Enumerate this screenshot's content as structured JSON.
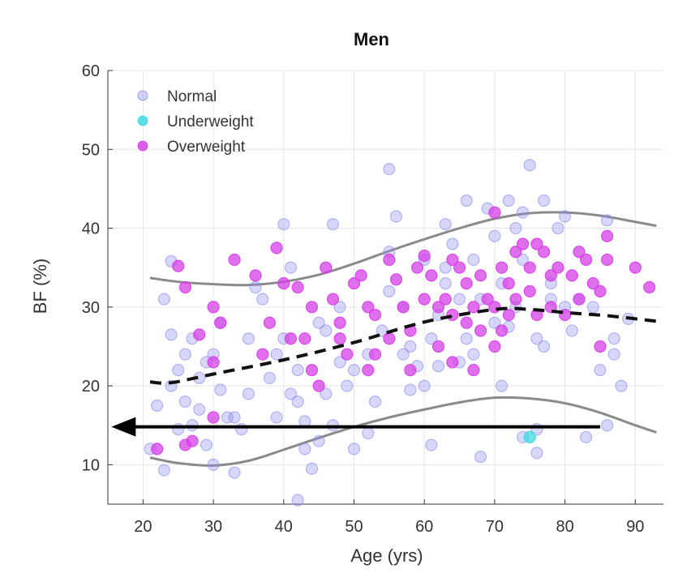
{
  "chart_data": {
    "type": "scatter",
    "title": "Men",
    "xlabel": "Age (yrs)",
    "ylabel": "BF (%)",
    "xlim": [
      15,
      94
    ],
    "ylim": [
      5,
      60
    ],
    "xticks": [
      20,
      30,
      40,
      50,
      60,
      70,
      80,
      90
    ],
    "yticks": [
      10,
      20,
      30,
      40,
      50,
      60
    ],
    "grid": true,
    "legend_position": "top-left",
    "series": [
      {
        "name": "Normal",
        "color": "#8c8cf0",
        "points": [
          [
            23,
            31
          ],
          [
            24,
            35.8
          ],
          [
            22,
            17.5
          ],
          [
            25,
            22
          ],
          [
            24,
            26.5
          ],
          [
            26,
            24
          ],
          [
            27,
            26
          ],
          [
            26,
            18
          ],
          [
            28,
            17
          ],
          [
            25,
            14.5
          ],
          [
            23,
            9.3
          ],
          [
            21,
            12
          ],
          [
            24,
            20
          ],
          [
            27,
            15
          ],
          [
            29,
            12.5
          ],
          [
            30,
            24
          ],
          [
            31,
            19.5
          ],
          [
            32,
            16
          ],
          [
            33,
            9
          ],
          [
            29,
            23
          ],
          [
            30,
            10
          ],
          [
            33,
            16
          ],
          [
            35,
            26
          ],
          [
            34,
            14.5
          ],
          [
            36,
            32.5
          ],
          [
            37,
            31
          ],
          [
            38,
            21
          ],
          [
            39,
            16
          ],
          [
            40,
            40.5
          ],
          [
            41,
            35
          ],
          [
            40,
            26
          ],
          [
            39,
            24
          ],
          [
            42,
            22
          ],
          [
            41,
            19
          ],
          [
            42,
            18
          ],
          [
            43,
            12
          ],
          [
            44,
            9.5
          ],
          [
            42,
            5.5
          ],
          [
            43,
            15.5
          ],
          [
            45,
            13
          ],
          [
            46,
            19
          ],
          [
            47,
            40.5
          ],
          [
            48,
            30
          ],
          [
            48,
            23
          ],
          [
            49,
            20
          ],
          [
            47,
            15
          ],
          [
            50,
            12
          ],
          [
            52,
            14
          ],
          [
            53,
            18
          ],
          [
            54,
            27
          ],
          [
            55,
            32
          ],
          [
            55,
            47.5
          ],
          [
            56,
            41.5
          ],
          [
            55,
            37
          ],
          [
            57,
            30
          ],
          [
            58,
            25
          ],
          [
            59,
            22.5
          ],
          [
            60,
            36
          ],
          [
            61,
            26
          ],
          [
            61,
            12.5
          ],
          [
            62,
            29
          ],
          [
            63,
            33
          ],
          [
            63,
            40.5
          ],
          [
            64,
            38
          ],
          [
            65,
            23
          ],
          [
            66,
            26
          ],
          [
            66,
            43.5
          ],
          [
            67,
            36
          ],
          [
            68,
            11
          ],
          [
            68,
            31
          ],
          [
            69,
            42.5
          ],
          [
            70,
            39
          ],
          [
            70,
            28
          ],
          [
            71,
            20
          ],
          [
            72,
            43.5
          ],
          [
            73,
            30
          ],
          [
            73,
            40
          ],
          [
            74,
            42
          ],
          [
            75,
            48
          ],
          [
            76,
            26
          ],
          [
            77,
            43.5
          ],
          [
            74,
            13.5
          ],
          [
            76,
            14.5
          ],
          [
            76,
            11.5
          ],
          [
            77,
            25
          ],
          [
            78,
            33
          ],
          [
            79,
            40
          ],
          [
            80,
            41.5
          ],
          [
            80,
            30
          ],
          [
            81,
            27
          ],
          [
            82,
            31
          ],
          [
            83,
            13.5
          ],
          [
            84,
            30
          ],
          [
            85,
            22
          ],
          [
            86,
            41
          ],
          [
            86,
            15
          ],
          [
            87,
            24
          ],
          [
            88,
            20
          ],
          [
            87,
            26
          ],
          [
            89,
            28.5
          ],
          [
            58,
            19.5
          ],
          [
            52,
            24
          ],
          [
            45,
            28
          ],
          [
            35,
            19
          ],
          [
            28,
            21
          ],
          [
            31,
            28
          ],
          [
            60,
            20
          ],
          [
            63,
            35
          ],
          [
            67,
            24
          ],
          [
            71,
            33
          ],
          [
            65,
            31
          ],
          [
            57,
            24
          ],
          [
            50,
            22
          ],
          [
            46,
            27
          ],
          [
            62,
            22.5
          ],
          [
            72,
            27.5
          ],
          [
            74,
            36
          ],
          [
            78,
            31
          ]
        ]
      },
      {
        "name": "Underweight",
        "color": "#3fd9e0",
        "points": [
          [
            75,
            13.5
          ]
        ]
      },
      {
        "name": "Overweight",
        "color": "#d63fe8",
        "points": [
          [
            22,
            12
          ],
          [
            25,
            35.2
          ],
          [
            26,
            32.5
          ],
          [
            28,
            26.5
          ],
          [
            30,
            30
          ],
          [
            31,
            28
          ],
          [
            30,
            23
          ],
          [
            27,
            13
          ],
          [
            30,
            16
          ],
          [
            33,
            36
          ],
          [
            38,
            28
          ],
          [
            37,
            24
          ],
          [
            39,
            37.5
          ],
          [
            40,
            33
          ],
          [
            42,
            32.5
          ],
          [
            44,
            30
          ],
          [
            41,
            26
          ],
          [
            44,
            22
          ],
          [
            45,
            20
          ],
          [
            46,
            35
          ],
          [
            47,
            31
          ],
          [
            48,
            26
          ],
          [
            49,
            24
          ],
          [
            50,
            33
          ],
          [
            51,
            34
          ],
          [
            52,
            30
          ],
          [
            53,
            29
          ],
          [
            52,
            22
          ],
          [
            53,
            24
          ],
          [
            55,
            36
          ],
          [
            56,
            33.5
          ],
          [
            57,
            30
          ],
          [
            58,
            27
          ],
          [
            58,
            22
          ],
          [
            59,
            35
          ],
          [
            60,
            36.5
          ],
          [
            61,
            34
          ],
          [
            62,
            30
          ],
          [
            62,
            25
          ],
          [
            63,
            31
          ],
          [
            64,
            29
          ],
          [
            64,
            23
          ],
          [
            65,
            35
          ],
          [
            66,
            33
          ],
          [
            66,
            28
          ],
          [
            67,
            30
          ],
          [
            67,
            22
          ],
          [
            68,
            27
          ],
          [
            68,
            34
          ],
          [
            69,
            31
          ],
          [
            70,
            30
          ],
          [
            70,
            25
          ],
          [
            71,
            35
          ],
          [
            72,
            33
          ],
          [
            72,
            29
          ],
          [
            73,
            37
          ],
          [
            73,
            31
          ],
          [
            74,
            38
          ],
          [
            75,
            35
          ],
          [
            75,
            32
          ],
          [
            76,
            29
          ],
          [
            77,
            37
          ],
          [
            78,
            34
          ],
          [
            78,
            30
          ],
          [
            79,
            35
          ],
          [
            80,
            29
          ],
          [
            81,
            34
          ],
          [
            82,
            37
          ],
          [
            82,
            31
          ],
          [
            83,
            36
          ],
          [
            84,
            33
          ],
          [
            85,
            32
          ],
          [
            86,
            36
          ],
          [
            86,
            39
          ],
          [
            85,
            25
          ],
          [
            90,
            35
          ],
          [
            92,
            32.5
          ],
          [
            70,
            42
          ],
          [
            64,
            36
          ],
          [
            36,
            34
          ],
          [
            43,
            26
          ],
          [
            48,
            28
          ],
          [
            55,
            26
          ],
          [
            60,
            31
          ],
          [
            76,
            38
          ],
          [
            71,
            27
          ],
          [
            26,
            12.5
          ]
        ]
      }
    ],
    "lines": [
      {
        "name": "mean-trend",
        "style": "dashed",
        "color": "#111111",
        "points": [
          [
            21,
            20.5
          ],
          [
            24,
            20.4
          ],
          [
            30,
            21.5
          ],
          [
            40,
            23.3
          ],
          [
            50,
            25.5
          ],
          [
            60,
            28.1
          ],
          [
            70,
            29.7
          ],
          [
            75,
            29.7
          ],
          [
            80,
            29.3
          ],
          [
            86,
            28.9
          ],
          [
            93,
            28.2
          ]
        ]
      },
      {
        "name": "upper-band",
        "style": "solid",
        "color": "#8a8a8a",
        "points": [
          [
            21,
            33.7
          ],
          [
            25,
            33.2
          ],
          [
            30,
            32.9
          ],
          [
            35,
            32.8
          ],
          [
            40,
            33.2
          ],
          [
            45,
            34.1
          ],
          [
            50,
            35.5
          ],
          [
            55,
            37.1
          ],
          [
            60,
            38.6
          ],
          [
            65,
            40.0
          ],
          [
            70,
            41.2
          ],
          [
            75,
            41.9
          ],
          [
            80,
            42.0
          ],
          [
            85,
            41.6
          ],
          [
            90,
            40.8
          ],
          [
            93,
            40.3
          ]
        ]
      },
      {
        "name": "lower-band",
        "style": "solid",
        "color": "#8a8a8a",
        "points": [
          [
            21,
            10.9
          ],
          [
            25,
            10.2
          ],
          [
            30,
            9.9
          ],
          [
            35,
            10.5
          ],
          [
            40,
            11.9
          ],
          [
            45,
            13.4
          ],
          [
            50,
            14.8
          ],
          [
            55,
            16.0
          ],
          [
            60,
            17.0
          ],
          [
            65,
            17.9
          ],
          [
            70,
            18.5
          ],
          [
            75,
            18.4
          ],
          [
            80,
            17.8
          ],
          [
            85,
            16.6
          ],
          [
            90,
            15.0
          ],
          [
            93,
            14.1
          ]
        ]
      }
    ],
    "annotation_arrow": {
      "color": "#000000",
      "from": [
        85,
        14.8
      ],
      "to": [
        15.5,
        14.8
      ]
    }
  }
}
